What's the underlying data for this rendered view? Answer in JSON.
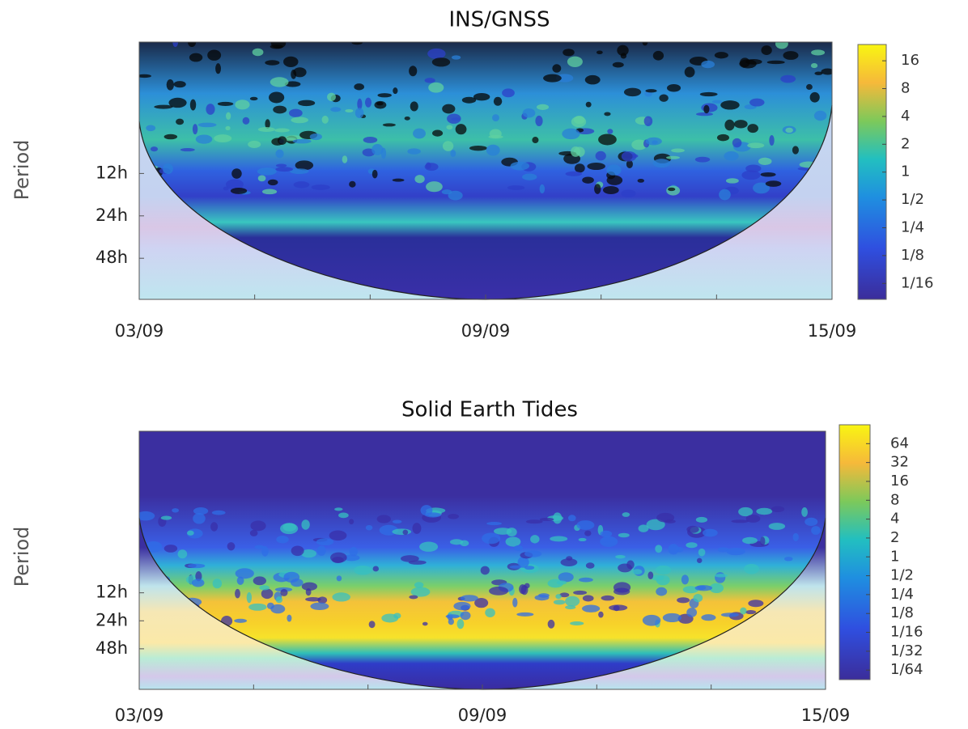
{
  "chart_data": [
    {
      "type": "heatmap",
      "title": "INS/GNSS",
      "y_label": "Period",
      "log_y": true,
      "ylim": [
        94,
        1.4
      ],
      "yticks": [
        {
          "value": 12,
          "label": "12h"
        },
        {
          "value": 24,
          "label": "24h"
        },
        {
          "value": 48,
          "label": "48h"
        }
      ],
      "x": [
        "03/09",
        "09/09",
        "15/09"
      ],
      "colorbar": {
        "lim": [
          0.042,
          24
        ],
        "ticks": [
          16,
          8,
          4,
          2,
          1,
          {
            "value": 0.5,
            "label": "1/2"
          },
          {
            "value": 0.25,
            "label": "1/4"
          },
          {
            "value": 0.125,
            "label": "1/8"
          },
          {
            "value": 0.0625,
            "label": "1/16"
          }
        ]
      }
    },
    {
      "type": "heatmap",
      "title": "Solid Earth Tides",
      "y_label": "Period",
      "log_y": true,
      "ylim": [
        131,
        0.22
      ],
      "yticks": [
        {
          "value": 12,
          "label": "12h"
        },
        {
          "value": 24,
          "label": "24h"
        },
        {
          "value": 48,
          "label": "48h"
        }
      ],
      "x": [
        "03/09",
        "09/09",
        "15/09"
      ],
      "colorbar": {
        "lim": [
          0.011,
          128
        ],
        "ticks": [
          64,
          32,
          16,
          8,
          4,
          2,
          1,
          {
            "value": 0.5,
            "label": "1/2"
          },
          {
            "value": 0.25,
            "label": "1/4"
          },
          {
            "value": 0.125,
            "label": "1/8"
          },
          {
            "value": 0.0625,
            "label": "1/16"
          },
          {
            "value": 0.03125,
            "label": "1/32"
          },
          {
            "value": 0.015625,
            "label": "1/64"
          }
        ]
      }
    }
  ]
}
